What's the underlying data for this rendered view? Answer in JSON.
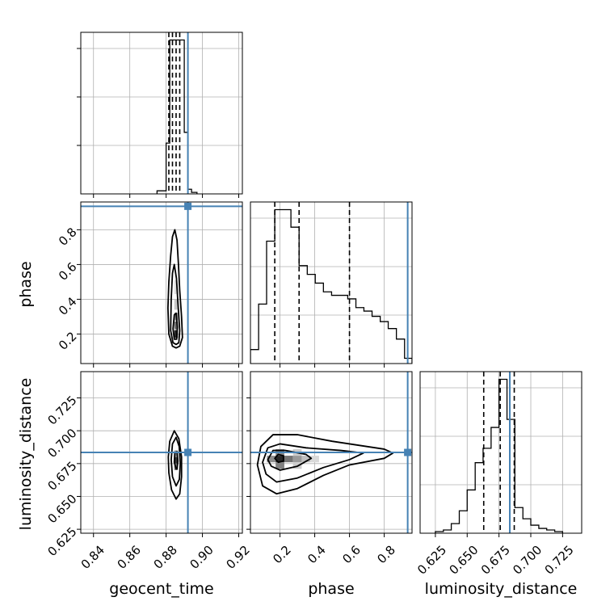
{
  "chart_data": {
    "type": "corner",
    "parameters": [
      "geocent_time",
      "phase",
      "luminosity_distance"
    ],
    "truths": {
      "geocent_time": 0.892,
      "phase": 0.935,
      "luminosity_distance": 0.6835
    },
    "truth_color": "#4682b4",
    "grid": true,
    "marginals": [
      {
        "parameter": "geocent_time",
        "xlim": [
          0.833,
          0.922
        ],
        "xticks": [
          0.84,
          0.86,
          0.88,
          0.9,
          0.92
        ],
        "xtick_labels": [
          "0.84",
          "0.86",
          "0.88",
          "0.90",
          "0.92"
        ],
        "bin_edges": [
          0.875,
          0.88,
          0.882,
          0.884,
          0.886,
          0.888,
          0.89,
          0.892,
          0.894,
          0.897
        ],
        "counts": [
          2,
          33,
          100,
          100,
          100,
          100,
          40,
          3,
          1
        ],
        "quantile_lines": [
          0.8815,
          0.8835,
          0.8855,
          0.8875
        ]
      },
      {
        "parameter": "phase",
        "xlim": [
          0.03,
          0.96
        ],
        "xticks": [
          0.2,
          0.4,
          0.6,
          0.8
        ],
        "xtick_labels": [
          "0.2",
          "0.4",
          "0.6",
          "0.8"
        ],
        "bin_edges": [
          0.03,
          0.077,
          0.123,
          0.17,
          0.217,
          0.263,
          0.31,
          0.357,
          0.403,
          0.45,
          0.497,
          0.543,
          0.59,
          0.637,
          0.683,
          0.73,
          0.777,
          0.823,
          0.87,
          0.917,
          0.96
        ],
        "counts": [
          8,
          34,
          70,
          88,
          88,
          78,
          56,
          51,
          46,
          41,
          39,
          39,
          37,
          32,
          30,
          27,
          24,
          20,
          14,
          3
        ],
        "quantile_lines": [
          0.17,
          0.31,
          0.6
        ]
      },
      {
        "parameter": "luminosity_distance",
        "xlim": [
          0.613,
          0.74
        ],
        "xticks": [
          0.625,
          0.65,
          0.675,
          0.7,
          0.725
        ],
        "xtick_labels": [
          "0.625",
          "0.650",
          "0.675",
          "0.700",
          "0.725"
        ],
        "bin_edges": [
          0.625,
          0.6313,
          0.6375,
          0.6438,
          0.65,
          0.6563,
          0.6625,
          0.6688,
          0.675,
          0.6813,
          0.6875,
          0.6938,
          0.7,
          0.7063,
          0.7125,
          0.7188,
          0.725
        ],
        "counts": [
          1,
          2,
          6,
          14,
          27,
          44,
          53,
          66,
          96,
          71,
          16,
          9,
          5,
          3,
          2,
          1
        ],
        "quantile_lines": [
          0.663,
          0.676,
          0.687
        ]
      }
    ],
    "panels_2d": [
      {
        "x": "geocent_time",
        "y": "phase",
        "xlim": [
          0.833,
          0.922
        ],
        "ylim": [
          0.03,
          0.96
        ],
        "yticks": [
          0.2,
          0.4,
          0.6,
          0.8
        ],
        "ytick_labels": [
          "0.2",
          "0.4",
          "0.6",
          "0.8"
        ],
        "ylabel": "phase",
        "contours": [
          [
            [
              0.8835,
              0.13
            ],
            [
              0.8815,
              0.2
            ],
            [
              0.881,
              0.35
            ],
            [
              0.8815,
              0.5
            ],
            [
              0.8825,
              0.65
            ],
            [
              0.8835,
              0.76
            ],
            [
              0.8848,
              0.8
            ],
            [
              0.886,
              0.74
            ],
            [
              0.8868,
              0.6
            ],
            [
              0.8875,
              0.45
            ],
            [
              0.8885,
              0.3
            ],
            [
              0.889,
              0.18
            ],
            [
              0.8875,
              0.13
            ],
            [
              0.8855,
              0.12
            ]
          ],
          [
            [
              0.8838,
              0.15
            ],
            [
              0.8825,
              0.22
            ],
            [
              0.8828,
              0.4
            ],
            [
              0.8835,
              0.55
            ],
            [
              0.8845,
              0.6
            ],
            [
              0.8857,
              0.52
            ],
            [
              0.8865,
              0.38
            ],
            [
              0.8875,
              0.22
            ],
            [
              0.887,
              0.15
            ],
            [
              0.8855,
              0.14
            ]
          ],
          [
            [
              0.8845,
              0.17
            ],
            [
              0.8838,
              0.23
            ],
            [
              0.8845,
              0.31
            ],
            [
              0.8855,
              0.32
            ],
            [
              0.8862,
              0.24
            ],
            [
              0.8858,
              0.17
            ]
          ]
        ],
        "density_cells": [
          {
            "x": 0.8855,
            "y": 0.2,
            "w": 0.002,
            "h": 0.045,
            "shade": 0.85
          },
          {
            "x": 0.8855,
            "y": 0.25,
            "w": 0.002,
            "h": 0.045,
            "shade": 0.55
          },
          {
            "x": 0.8855,
            "y": 0.3,
            "w": 0.002,
            "h": 0.045,
            "shade": 0.4
          },
          {
            "x": 0.8855,
            "y": 0.37,
            "w": 0.002,
            "h": 0.06,
            "shade": 0.22
          },
          {
            "x": 0.8855,
            "y": 0.47,
            "w": 0.002,
            "h": 0.08,
            "shade": 0.12
          }
        ]
      },
      {
        "x": "geocent_time",
        "y": "luminosity_distance",
        "xlim": [
          0.833,
          0.922
        ],
        "ylim": [
          0.622,
          0.745
        ],
        "yticks": [
          0.625,
          0.65,
          0.675,
          0.7,
          0.725
        ],
        "ytick_labels": [
          "0.625",
          "0.650",
          "0.675",
          "0.700",
          "0.725"
        ],
        "ylabel": "luminosity_distance",
        "xlabel": "geocent_time",
        "contours": [
          [
            [
              0.8855,
              0.648
            ],
            [
              0.883,
              0.655
            ],
            [
              0.8815,
              0.668
            ],
            [
              0.8812,
              0.68
            ],
            [
              0.882,
              0.692
            ],
            [
              0.8845,
              0.7
            ],
            [
              0.887,
              0.694
            ],
            [
              0.8885,
              0.68
            ],
            [
              0.8885,
              0.665
            ],
            [
              0.8875,
              0.652
            ]
          ],
          [
            [
              0.8855,
              0.658
            ],
            [
              0.8835,
              0.665
            ],
            [
              0.8828,
              0.678
            ],
            [
              0.8835,
              0.69
            ],
            [
              0.8855,
              0.695
            ],
            [
              0.8872,
              0.688
            ],
            [
              0.8878,
              0.675
            ],
            [
              0.8873,
              0.663
            ]
          ],
          [
            [
              0.8855,
              0.671
            ],
            [
              0.8845,
              0.676
            ],
            [
              0.8848,
              0.683
            ],
            [
              0.886,
              0.684
            ],
            [
              0.8865,
              0.677
            ],
            [
              0.886,
              0.671
            ]
          ]
        ],
        "density_cells": [
          {
            "x": 0.8855,
            "y": 0.6775,
            "w": 0.002,
            "h": 0.005,
            "shade": 0.8
          },
          {
            "x": 0.8855,
            "y": 0.6725,
            "w": 0.002,
            "h": 0.005,
            "shade": 0.5
          },
          {
            "x": 0.8855,
            "y": 0.6825,
            "w": 0.002,
            "h": 0.005,
            "shade": 0.45
          }
        ]
      },
      {
        "x": "phase",
        "y": "luminosity_distance",
        "xlim": [
          0.03,
          0.96
        ],
        "ylim": [
          0.622,
          0.745
        ],
        "xlabel": "phase",
        "contours": [
          [
            [
              0.07,
              0.674
            ],
            [
              0.09,
              0.688
            ],
            [
              0.16,
              0.697
            ],
            [
              0.3,
              0.697
            ],
            [
              0.5,
              0.692
            ],
            [
              0.7,
              0.688
            ],
            [
              0.8,
              0.686
            ],
            [
              0.85,
              0.683
            ],
            [
              0.8,
              0.679
            ],
            [
              0.6,
              0.674
            ],
            [
              0.45,
              0.666
            ],
            [
              0.3,
              0.656
            ],
            [
              0.18,
              0.652
            ],
            [
              0.1,
              0.658
            ]
          ],
          [
            [
              0.1,
              0.676
            ],
            [
              0.13,
              0.687
            ],
            [
              0.2,
              0.69
            ],
            [
              0.35,
              0.687
            ],
            [
              0.55,
              0.685
            ],
            [
              0.68,
              0.683
            ],
            [
              0.6,
              0.678
            ],
            [
              0.45,
              0.672
            ],
            [
              0.3,
              0.664
            ],
            [
              0.18,
              0.661
            ],
            [
              0.12,
              0.667
            ]
          ],
          [
            [
              0.13,
              0.678
            ],
            [
              0.16,
              0.685
            ],
            [
              0.23,
              0.685
            ],
            [
              0.35,
              0.682
            ],
            [
              0.38,
              0.679
            ],
            [
              0.3,
              0.673
            ],
            [
              0.2,
              0.67
            ],
            [
              0.15,
              0.673
            ]
          ],
          [
            [
              0.17,
              0.679
            ],
            [
              0.19,
              0.682
            ],
            [
              0.22,
              0.681
            ],
            [
              0.22,
              0.677
            ],
            [
              0.19,
              0.676
            ]
          ]
        ],
        "density_cells": [
          {
            "x": 0.2,
            "y": 0.6785,
            "w": 0.05,
            "h": 0.005,
            "shade": 0.85
          },
          {
            "x": 0.25,
            "y": 0.6785,
            "w": 0.05,
            "h": 0.005,
            "shade": 0.55
          },
          {
            "x": 0.3,
            "y": 0.6785,
            "w": 0.05,
            "h": 0.005,
            "shade": 0.4
          },
          {
            "x": 0.2,
            "y": 0.6735,
            "w": 0.05,
            "h": 0.005,
            "shade": 0.5
          },
          {
            "x": 0.2,
            "y": 0.6835,
            "w": 0.05,
            "h": 0.005,
            "shade": 0.45
          },
          {
            "x": 0.15,
            "y": 0.6785,
            "w": 0.05,
            "h": 0.005,
            "shade": 0.45
          },
          {
            "x": 0.35,
            "y": 0.6785,
            "w": 0.05,
            "h": 0.005,
            "shade": 0.25
          },
          {
            "x": 0.4,
            "y": 0.6785,
            "w": 0.05,
            "h": 0.005,
            "shade": 0.15
          },
          {
            "x": 0.3,
            "y": 0.6735,
            "w": 0.05,
            "h": 0.005,
            "shade": 0.2
          },
          {
            "x": 0.3,
            "y": 0.6835,
            "w": 0.05,
            "h": 0.005,
            "shade": 0.2
          }
        ]
      }
    ]
  }
}
